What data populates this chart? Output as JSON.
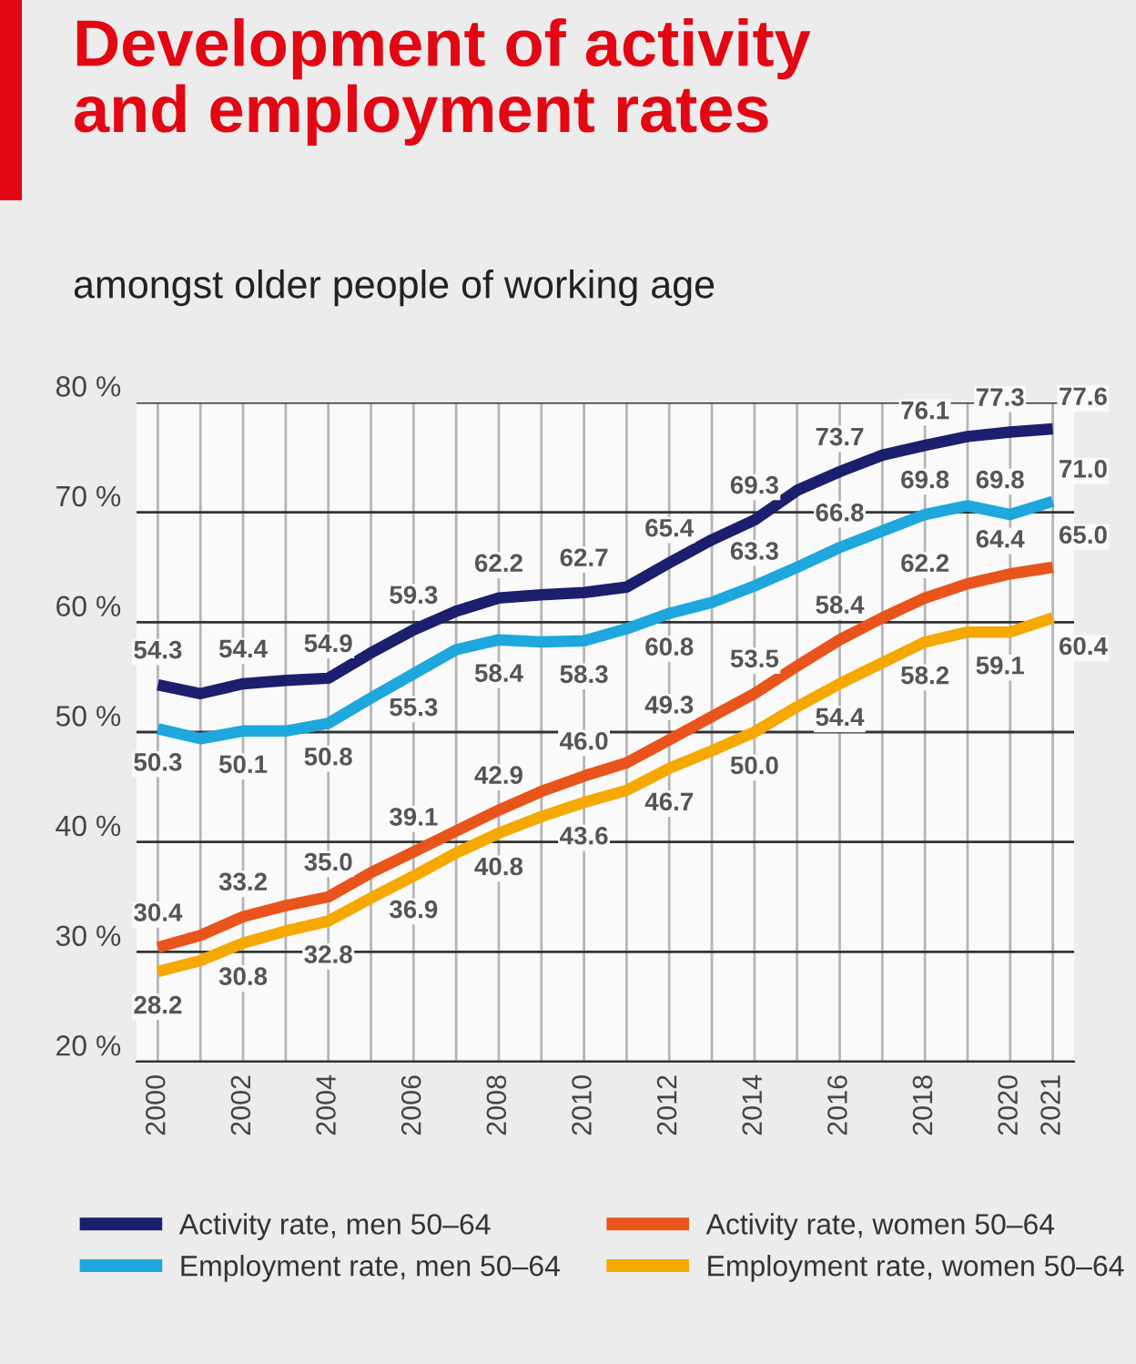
{
  "chart_data": {
    "type": "line",
    "title": "Development of activity\nand employment rates",
    "subtitle": "amongst older people of working age",
    "x": [
      2000,
      2001,
      2002,
      2003,
      2004,
      2005,
      2006,
      2007,
      2008,
      2009,
      2010,
      2011,
      2012,
      2013,
      2014,
      2015,
      2016,
      2017,
      2018,
      2019,
      2020,
      2021
    ],
    "series": [
      {
        "name": "Activity rate, men 50–64",
        "color": "#1b1f6e",
        "values": [
          54.3,
          53.5,
          54.4,
          54.7,
          54.9,
          57.2,
          59.3,
          61.0,
          62.2,
          62.5,
          62.7,
          63.2,
          65.4,
          67.5,
          69.3,
          72.0,
          73.7,
          75.2,
          76.1,
          76.9,
          77.3,
          77.6
        ],
        "value_labels": [
          "54.3",
          null,
          "54.4",
          null,
          "54.9",
          null,
          "59.3",
          null,
          "62.2",
          null,
          "62.7",
          null,
          "65.4",
          null,
          "69.3",
          null,
          "73.7",
          null,
          "76.1",
          null,
          "77.3",
          "77.6"
        ]
      },
      {
        "name": "Employment rate, men 50–64",
        "color": "#1ea7dd",
        "values": [
          50.3,
          49.4,
          50.1,
          50.1,
          50.8,
          53.1,
          55.3,
          57.5,
          58.4,
          58.2,
          58.3,
          59.4,
          60.8,
          61.8,
          63.3,
          65.0,
          66.8,
          68.3,
          69.8,
          70.6,
          69.8,
          71.0
        ],
        "value_labels": [
          "50.3",
          null,
          "50.1",
          null,
          "50.8",
          null,
          "55.3",
          null,
          "58.4",
          null,
          "58.3",
          null,
          "60.8",
          null,
          "63.3",
          null,
          "66.8",
          null,
          "69.8",
          null,
          "69.8",
          "71.0"
        ]
      },
      {
        "name": "Activity rate, women 50–64",
        "color": "#e8541c",
        "values": [
          30.4,
          31.5,
          33.2,
          34.2,
          35.0,
          37.2,
          39.1,
          41.0,
          42.9,
          44.6,
          46.0,
          47.2,
          49.3,
          51.4,
          53.5,
          56.0,
          58.4,
          60.4,
          62.2,
          63.5,
          64.4,
          65.0
        ],
        "value_labels": [
          "30.4",
          null,
          "33.2",
          null,
          "35.0",
          null,
          "39.1",
          null,
          "42.9",
          null,
          "46.0",
          null,
          "49.3",
          null,
          "53.5",
          null,
          "58.4",
          null,
          "62.2",
          null,
          "64.4",
          "65.0"
        ]
      },
      {
        "name": "Employment rate, women 50–64",
        "color": "#f5a800",
        "values": [
          28.2,
          29.2,
          30.8,
          31.9,
          32.8,
          34.9,
          36.9,
          39.0,
          40.8,
          42.3,
          43.6,
          44.7,
          46.7,
          48.3,
          50.0,
          52.3,
          54.4,
          56.3,
          58.2,
          59.1,
          59.1,
          60.4
        ],
        "value_labels": [
          "28.2",
          null,
          "30.8",
          null,
          "32.8",
          null,
          "36.9",
          null,
          "40.8",
          null,
          "43.6",
          null,
          "46.7",
          null,
          "50.0",
          null,
          "54.4",
          null,
          "58.2",
          null,
          "59.1",
          "60.4"
        ]
      }
    ],
    "xlim": [
      1999.5,
      2021.5
    ],
    "xticks": [
      2000,
      {
        "value": 2001,
        "label": null
      },
      2002,
      {
        "value": 2003,
        "label": null
      },
      2004,
      {
        "value": 2005,
        "label": null
      },
      2006,
      {
        "value": 2007,
        "label": null
      },
      2008,
      {
        "value": 2009,
        "label": null
      },
      2010,
      {
        "value": 2011,
        "label": null
      },
      2012,
      {
        "value": 2013,
        "label": null
      },
      2014,
      {
        "value": 2015,
        "label": null
      },
      2016,
      {
        "value": 2017,
        "label": null
      },
      2018,
      {
        "value": 2019,
        "label": null
      },
      2020,
      2021
    ],
    "ylim": [
      20,
      80
    ],
    "yticks": [
      {
        "value": 20,
        "label": "20 %"
      },
      {
        "value": 30,
        "label": "30 %"
      },
      {
        "value": 40,
        "label": "40 %"
      },
      {
        "value": 50,
        "label": "50 %"
      },
      {
        "value": 60,
        "label": "60 %"
      },
      {
        "value": 70,
        "label": "70 %"
      },
      {
        "value": 80,
        "label": "80 %"
      }
    ],
    "grid": true,
    "legend": "bottom",
    "marker": "none",
    "line_style": "solid"
  }
}
